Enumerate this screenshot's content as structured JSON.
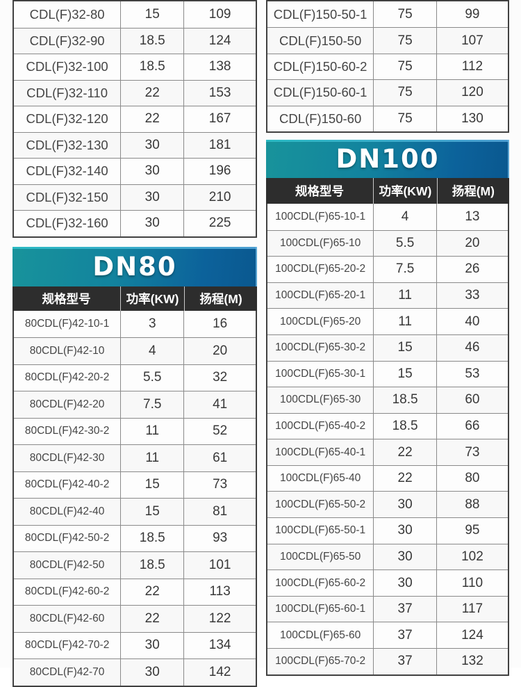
{
  "colors": {
    "banner_gradient_start": "#18939b",
    "banner_gradient_end": "#0a588f",
    "banner_top_highlight": "#58aadd",
    "column_header_bg": "#2d2d2d",
    "table_outer_border": "#414141",
    "grid_line": "#8a8a8a",
    "cell_text": "#3c3c3c"
  },
  "left_column": {
    "cdl32_table": {
      "rows": [
        [
          "CDL(F)32-80",
          "15",
          "109"
        ],
        [
          "CDL(F)32-90",
          "18.5",
          "124"
        ],
        [
          "CDL(F)32-100",
          "18.5",
          "138"
        ],
        [
          "CDL(F)32-110",
          "22",
          "153"
        ],
        [
          "CDL(F)32-120",
          "22",
          "167"
        ],
        [
          "CDL(F)32-130",
          "30",
          "181"
        ],
        [
          "CDL(F)32-140",
          "30",
          "196"
        ],
        [
          "CDL(F)32-150",
          "30",
          "210"
        ],
        [
          "CDL(F)32-160",
          "30",
          "225"
        ]
      ]
    },
    "dn80_section": {
      "title": "DN80",
      "headers": [
        "规格型号",
        "功率(KW)",
        "扬程(M)"
      ],
      "rows": [
        [
          "80CDL(F)42-10-1",
          "3",
          "16"
        ],
        [
          "80CDL(F)42-10",
          "4",
          "20"
        ],
        [
          "80CDL(F)42-20-2",
          "5.5",
          "32"
        ],
        [
          "80CDL(F)42-20",
          "7.5",
          "41"
        ],
        [
          "80CDL(F)42-30-2",
          "11",
          "52"
        ],
        [
          "80CDL(F)42-30",
          "11",
          "61"
        ],
        [
          "80CDL(F)42-40-2",
          "15",
          "73"
        ],
        [
          "80CDL(F)42-40",
          "15",
          "81"
        ],
        [
          "80CDL(F)42-50-2",
          "18.5",
          "93"
        ],
        [
          "80CDL(F)42-50",
          "18.5",
          "101"
        ],
        [
          "80CDL(F)42-60-2",
          "22",
          "113"
        ],
        [
          "80CDL(F)42-60",
          "22",
          "122"
        ],
        [
          "80CDL(F)42-70-2",
          "30",
          "134"
        ],
        [
          "80CDL(F)42-70",
          "30",
          "142"
        ]
      ]
    }
  },
  "right_column": {
    "cdl150_table": {
      "rows": [
        [
          "CDL(F)150-50-1",
          "75",
          "99"
        ],
        [
          "CDL(F)150-50",
          "75",
          "107"
        ],
        [
          "CDL(F)150-60-2",
          "75",
          "112"
        ],
        [
          "CDL(F)150-60-1",
          "75",
          "120"
        ],
        [
          "CDL(F)150-60",
          "75",
          "130"
        ]
      ]
    },
    "dn100_section": {
      "title": "DN100",
      "headers": [
        "规格型号",
        "功率(KW)",
        "扬程(M)"
      ],
      "rows": [
        [
          "100CDL(F)65-10-1",
          "4",
          "13"
        ],
        [
          "100CDL(F)65-10",
          "5.5",
          "20"
        ],
        [
          "100CDL(F)65-20-2",
          "7.5",
          "26"
        ],
        [
          "100CDL(F)65-20-1",
          "11",
          "33"
        ],
        [
          "100CDL(F)65-20",
          "11",
          "40"
        ],
        [
          "100CDL(F)65-30-2",
          "15",
          "46"
        ],
        [
          "100CDL(F)65-30-1",
          "15",
          "53"
        ],
        [
          "100CDL(F)65-30",
          "18.5",
          "60"
        ],
        [
          "100CDL(F)65-40-2",
          "18.5",
          "66"
        ],
        [
          "100CDL(F)65-40-1",
          "22",
          "73"
        ],
        [
          "100CDL(F)65-40",
          "22",
          "80"
        ],
        [
          "100CDL(F)65-50-2",
          "30",
          "88"
        ],
        [
          "100CDL(F)65-50-1",
          "30",
          "95"
        ],
        [
          "100CDL(F)65-50",
          "30",
          "102"
        ],
        [
          "100CDL(F)65-60-2",
          "30",
          "110"
        ],
        [
          "100CDL(F)65-60-1",
          "37",
          "117"
        ],
        [
          "100CDL(F)65-60",
          "37",
          "124"
        ],
        [
          "100CDL(F)65-70-2",
          "37",
          "132"
        ]
      ]
    }
  }
}
